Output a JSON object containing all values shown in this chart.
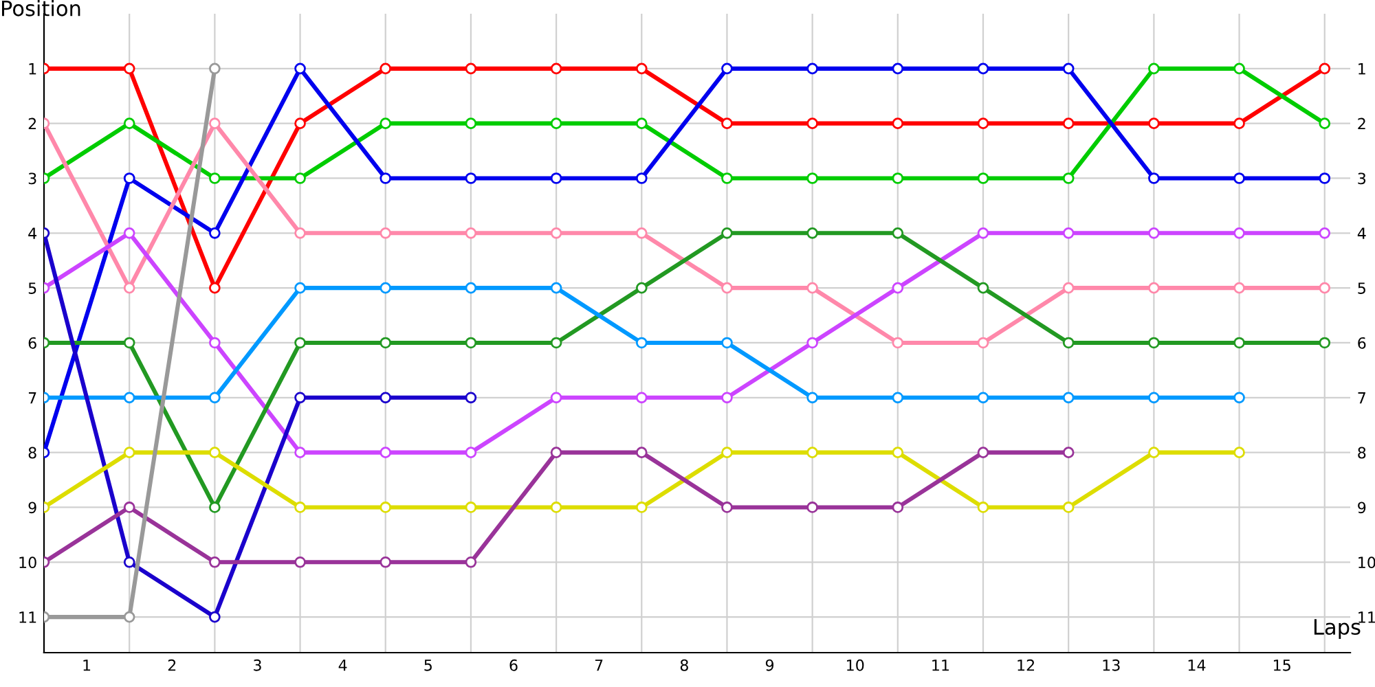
{
  "chart_data": {
    "type": "line",
    "xlabel": "Laps",
    "ylabel": "Position",
    "marker": "circle",
    "line_style": "solid",
    "grid": true,
    "legend": false,
    "xlim": [
      0,
      15.3
    ],
    "ylim": [
      11.65,
      0
    ],
    "y2lim": [
      11.65,
      0
    ],
    "xticks": [
      {
        "value": 0,
        "label": null
      },
      {
        "value": 1,
        "label": null
      },
      {
        "value": 2,
        "label": null
      },
      {
        "value": 3,
        "label": null
      },
      {
        "value": 4,
        "label": null
      },
      {
        "value": 5,
        "label": null
      },
      {
        "value": 6,
        "label": null
      },
      {
        "value": 7,
        "label": null
      },
      {
        "value": 8,
        "label": null
      },
      {
        "value": 9,
        "label": null
      },
      {
        "value": 10,
        "label": null
      },
      {
        "value": 11,
        "label": null
      },
      {
        "value": 12,
        "label": null
      },
      {
        "value": 13,
        "label": null
      },
      {
        "value": 14,
        "label": null
      },
      {
        "value": 15,
        "label": null
      },
      {
        "value": 0.5,
        "label": "1"
      },
      {
        "value": 1.5,
        "label": "2"
      },
      {
        "value": 2.5,
        "label": "3"
      },
      {
        "value": 3.5,
        "label": "4"
      },
      {
        "value": 4.5,
        "label": "5"
      },
      {
        "value": 5.5,
        "label": "6"
      },
      {
        "value": 6.5,
        "label": "7"
      },
      {
        "value": 7.5,
        "label": "8"
      },
      {
        "value": 8.5,
        "label": "9"
      },
      {
        "value": 9.5,
        "label": "10"
      },
      {
        "value": 10.5,
        "label": "11"
      },
      {
        "value": 11.5,
        "label": "12"
      },
      {
        "value": 12.5,
        "label": "13"
      },
      {
        "value": 13.5,
        "label": "14"
      },
      {
        "value": 14.5,
        "label": "15"
      }
    ],
    "yticks": [
      1,
      2,
      3,
      4,
      5,
      6,
      7,
      8,
      9,
      10,
      11
    ],
    "y2ticks": [
      1,
      2,
      3,
      4,
      5,
      6,
      7,
      8,
      9,
      10,
      11
    ],
    "x": [
      0,
      1,
      2,
      3,
      4,
      5,
      6,
      7,
      8,
      9,
      10,
      11,
      12,
      13,
      14,
      15
    ],
    "series": [
      {
        "color": "#ff0000",
        "values": [
          1,
          1,
          5,
          2,
          1,
          1,
          1,
          1,
          2,
          2,
          2,
          2,
          2,
          2,
          2,
          1
        ]
      },
      {
        "color": "#00cc00",
        "values": [
          3,
          2,
          3,
          3,
          2,
          2,
          2,
          2,
          3,
          3,
          3,
          3,
          3,
          1,
          1,
          2
        ]
      },
      {
        "color": "#0000ee",
        "values": [
          8,
          3,
          4,
          1,
          3,
          3,
          3,
          3,
          1,
          1,
          1,
          1,
          1,
          3,
          3,
          3
        ]
      },
      {
        "color": "#ff88aa",
        "values": [
          2,
          5,
          2,
          4,
          4,
          4,
          4,
          4,
          5,
          5,
          6,
          6,
          5,
          5,
          5,
          5
        ]
      },
      {
        "color": "#cc44ff",
        "values": [
          5,
          4,
          6,
          8,
          8,
          8,
          7,
          7,
          7,
          6,
          5,
          4,
          4,
          4,
          4,
          4
        ]
      },
      {
        "color": "#229922",
        "values": [
          6,
          6,
          9,
          6,
          6,
          6,
          6,
          5,
          4,
          4,
          4,
          5,
          6,
          6,
          6,
          6
        ]
      },
      {
        "color": "#0099ff",
        "values": [
          7,
          7,
          7,
          5,
          5,
          5,
          5,
          6,
          6,
          7,
          7,
          7,
          7,
          7,
          7,
          null
        ]
      },
      {
        "color": "#1a00cc",
        "values": [
          4,
          10,
          11,
          7,
          7,
          7,
          null,
          null,
          null,
          null,
          null,
          null,
          null,
          null,
          null,
          null
        ]
      },
      {
        "color": "#dddd00",
        "values": [
          9,
          8,
          8,
          9,
          9,
          9,
          9,
          9,
          8,
          8,
          8,
          9,
          9,
          8,
          8,
          null
        ]
      },
      {
        "color": "#993399",
        "values": [
          10,
          9,
          10,
          10,
          10,
          10,
          8,
          8,
          9,
          9,
          9,
          8,
          8,
          null,
          null,
          null
        ]
      },
      {
        "color": "#999999",
        "values": [
          11,
          11,
          1,
          null,
          null,
          null,
          null,
          null,
          null,
          null,
          null,
          null,
          null,
          null,
          null,
          null
        ]
      }
    ]
  }
}
